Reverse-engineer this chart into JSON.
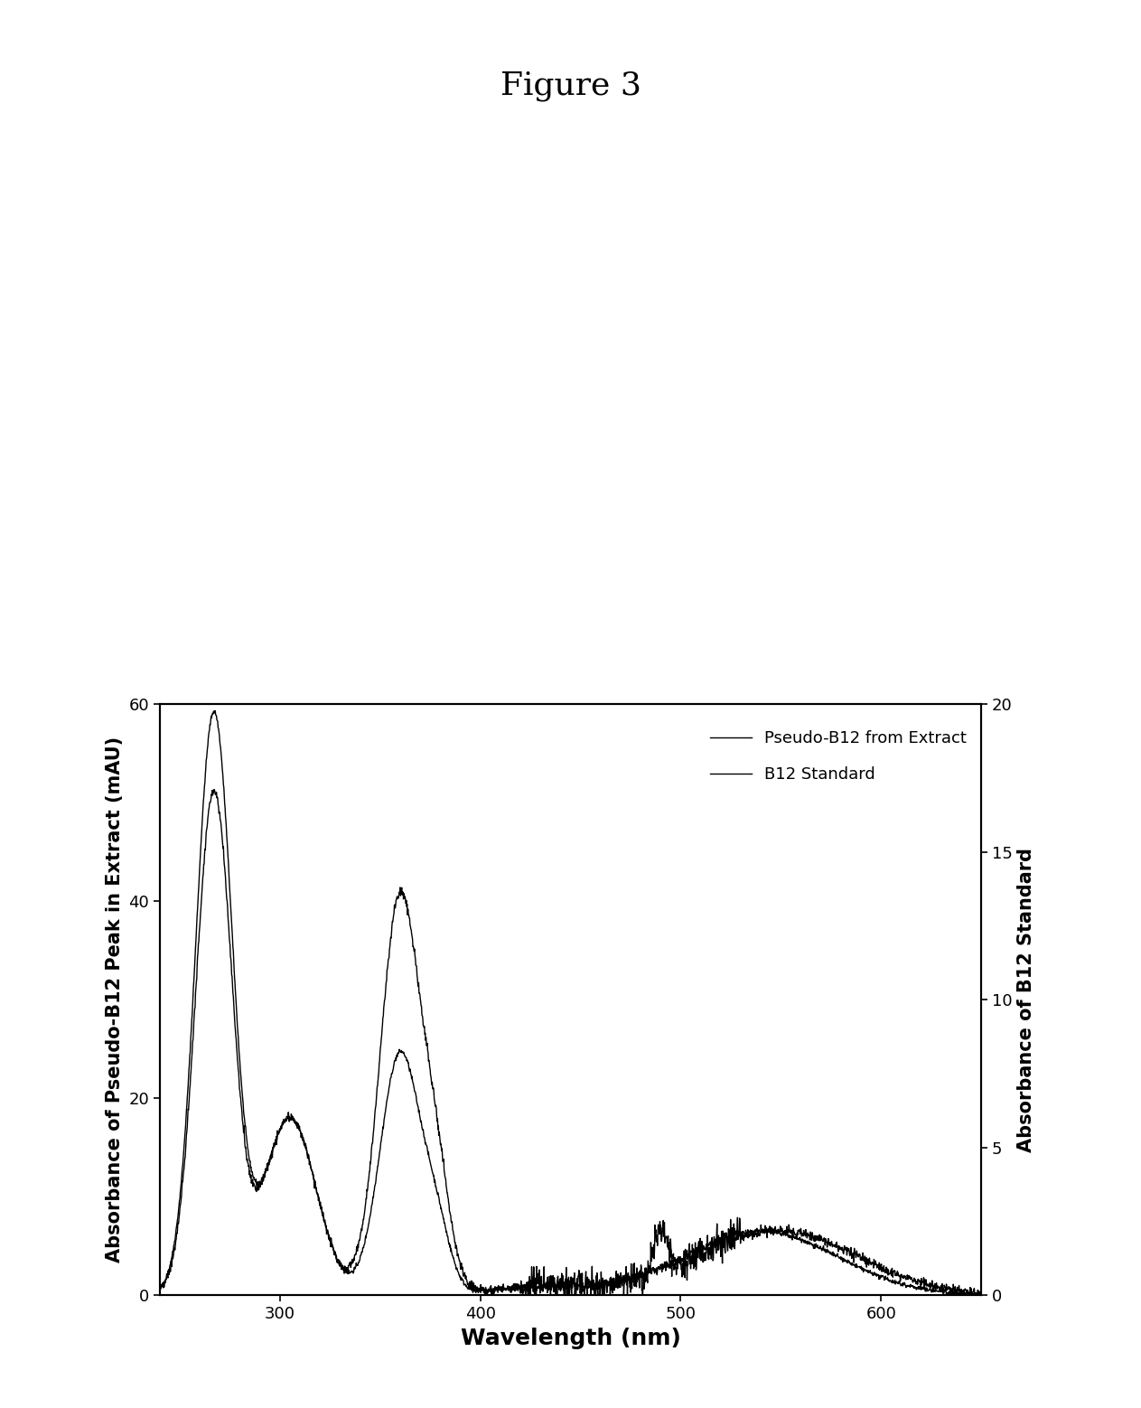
{
  "title": "Figure 3",
  "title_fontsize": 26,
  "title_font": "serif",
  "xlabel": "Wavelength (nm)",
  "ylabel_left": "Absorbance of Pseudo-B12 Peak in Extract (mAU)",
  "ylabel_right": "Absorbance of B12 Standard",
  "xlabel_fontsize": 18,
  "ylabel_fontsize": 15,
  "xlim": [
    240,
    650
  ],
  "ylim_left": [
    0,
    60
  ],
  "ylim_right": [
    0,
    20
  ],
  "xticks": [
    300,
    400,
    500,
    600
  ],
  "yticks_left": [
    0,
    20,
    40,
    60
  ],
  "yticks_right": [
    0,
    5,
    10,
    15,
    20
  ],
  "line_color": "#000000",
  "background_color": "#ffffff",
  "legend_label1": "Pseudo-B12 from Extract",
  "legend_label2": "B12 Standard",
  "legend_fontsize": 13,
  "fig_width": 12.63,
  "fig_height": 15.58
}
